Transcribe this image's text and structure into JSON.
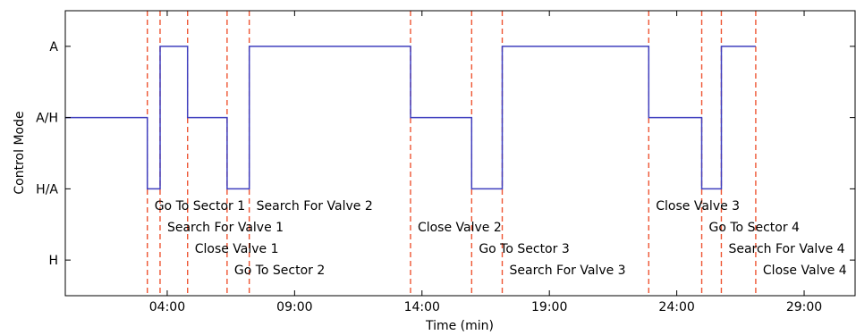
{
  "chart_data": {
    "type": "line",
    "title": "",
    "xlabel": "Time (min)",
    "ylabel": "Control Mode",
    "xlim": [
      0.0,
      31.0
    ],
    "ylim": [
      -0.5,
      3.5
    ],
    "x_ticks": [
      {
        "value": 4.0,
        "label": "04:00"
      },
      {
        "value": 9.0,
        "label": "09:00"
      },
      {
        "value": 14.0,
        "label": "14:00"
      },
      {
        "value": 19.0,
        "label": "19:00"
      },
      {
        "value": 24.0,
        "label": "24:00"
      },
      {
        "value": 29.0,
        "label": "29:00"
      }
    ],
    "y_categories": [
      "H",
      "H/A",
      "A/H",
      "A"
    ],
    "grid": false,
    "series": [
      {
        "color": "#3f3fbf",
        "points": [
          [
            0.0,
            "A/H"
          ],
          [
            3.22,
            "A/H"
          ],
          [
            3.22,
            "H/A"
          ],
          [
            3.72,
            "H/A"
          ],
          [
            3.72,
            "A"
          ],
          [
            4.8,
            "A"
          ],
          [
            4.8,
            "A/H"
          ],
          [
            6.35,
            "A/H"
          ],
          [
            6.35,
            "H/A"
          ],
          [
            7.22,
            "H/A"
          ],
          [
            7.22,
            "A"
          ],
          [
            13.55,
            "A"
          ],
          [
            13.55,
            "A/H"
          ],
          [
            15.95,
            "A/H"
          ],
          [
            15.95,
            "H/A"
          ],
          [
            17.15,
            "H/A"
          ],
          [
            17.15,
            "A"
          ],
          [
            22.9,
            "A"
          ],
          [
            22.9,
            "A/H"
          ],
          [
            24.98,
            "A/H"
          ],
          [
            24.98,
            "H/A"
          ],
          [
            25.75,
            "H/A"
          ],
          [
            25.75,
            "A"
          ],
          [
            27.1,
            "A"
          ]
        ]
      }
    ],
    "events": [
      {
        "x": 3.22,
        "label": "Go To Sector 1"
      },
      {
        "x": 3.72,
        "label": "Search For Valve 1"
      },
      {
        "x": 4.8,
        "label": "Close Valve 1"
      },
      {
        "x": 6.35,
        "label": "Go To Sector 2"
      },
      {
        "x": 7.22,
        "label": "Search For Valve 2"
      },
      {
        "x": 13.55,
        "label": "Close Valve 2"
      },
      {
        "x": 15.95,
        "label": "Go To Sector 3"
      },
      {
        "x": 17.15,
        "label": "Search For Valve 3"
      },
      {
        "x": 22.9,
        "label": "Close Valve 3"
      },
      {
        "x": 24.98,
        "label": "Go To Sector 4"
      },
      {
        "x": 25.75,
        "label": "Search For Valve 4"
      },
      {
        "x": 27.1,
        "label": "Close Valve 4"
      }
    ],
    "colors": {
      "line": "#3f3fbf",
      "events": "#ee5533",
      "axes": "#000000"
    }
  }
}
